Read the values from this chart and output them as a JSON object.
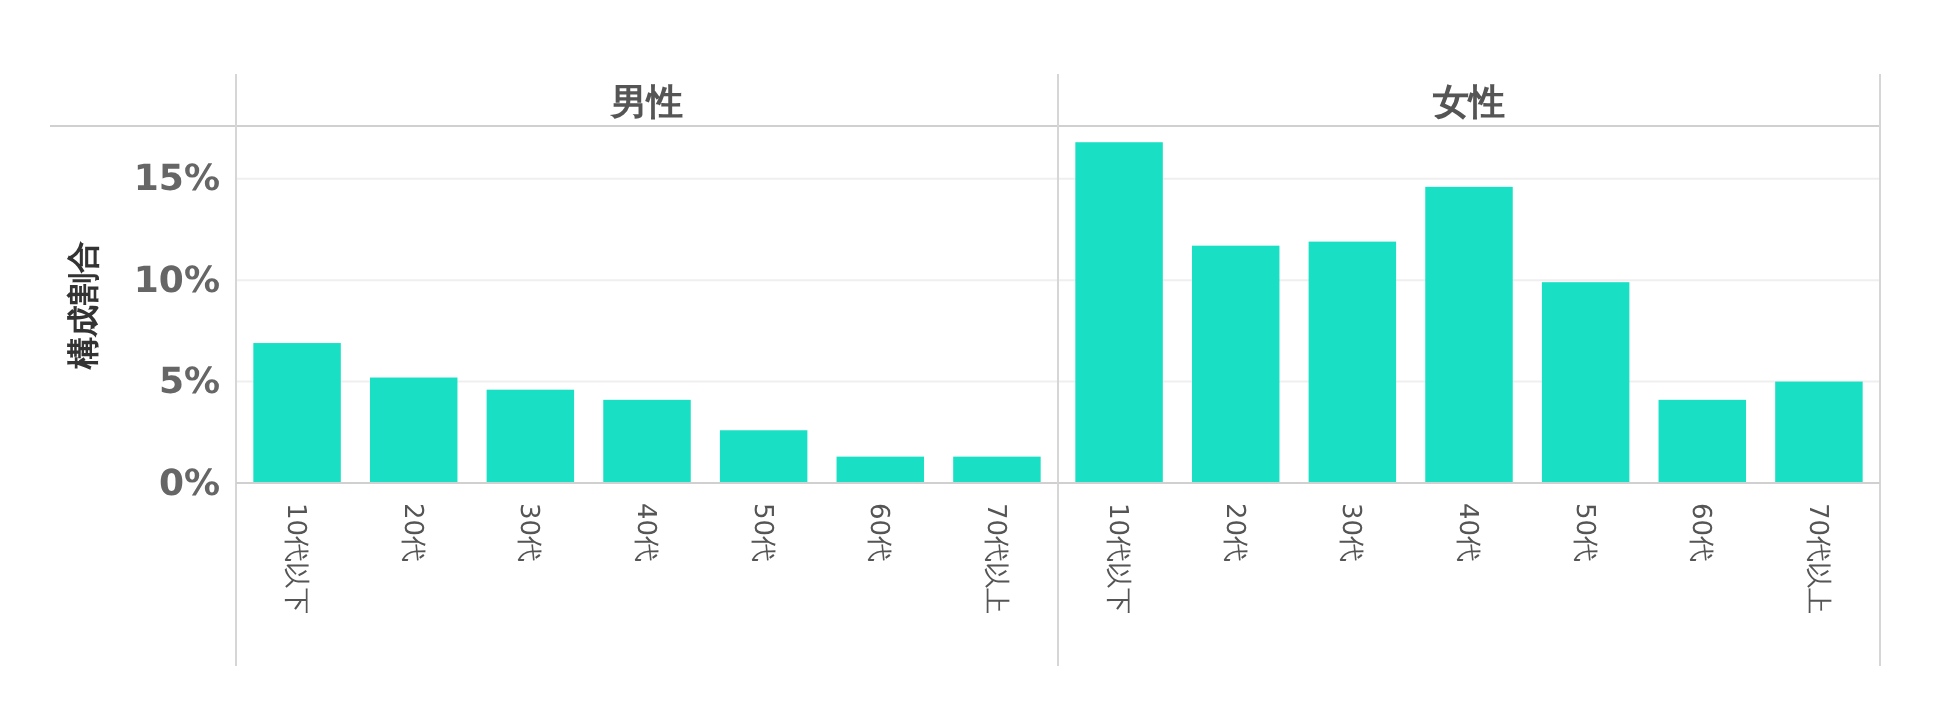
{
  "chart_data": [
    {
      "type": "bar",
      "title": "男性",
      "ylabel": "構成割合",
      "categories": [
        "10代以下",
        "20代",
        "30代",
        "40代",
        "50代",
        "60代",
        "70代以上"
      ],
      "values": [
        6.9,
        5.2,
        4.6,
        4.1,
        2.6,
        1.3,
        1.3
      ],
      "color": "#19e0c4",
      "ylim": [
        0,
        17.6
      ],
      "yticks": [
        {
          "value": 0,
          "label": "0%"
        },
        {
          "value": 5,
          "label": "5%"
        },
        {
          "value": 10,
          "label": "10%"
        },
        {
          "value": 15,
          "label": "15%"
        }
      ],
      "grid": "y"
    },
    {
      "type": "bar",
      "title": "女性",
      "categories": [
        "10代以下",
        "20代",
        "30代",
        "40代",
        "50代",
        "60代",
        "70代以上"
      ],
      "values": [
        16.8,
        11.7,
        11.9,
        14.6,
        9.9,
        4.1,
        5.0
      ],
      "color": "#19e0c4",
      "ylim": [
        0,
        17.6
      ],
      "yticks": [
        0,
        5,
        10,
        15
      ],
      "grid": "y",
      "tick_labels": "x"
    }
  ]
}
